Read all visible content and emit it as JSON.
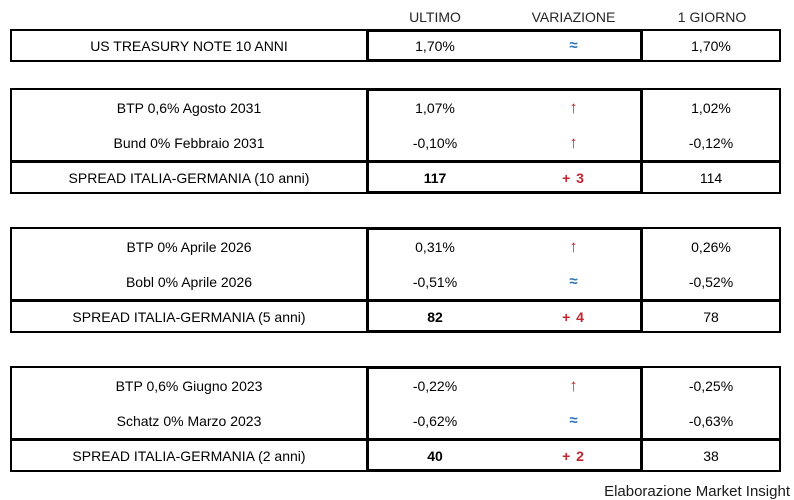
{
  "chart_data": {
    "type": "table",
    "columns": [
      "ULTIMO",
      "VARIAZIONE",
      "1 GIORNO"
    ],
    "symbols": {
      "up": "↑",
      "steady": "≈"
    },
    "colors": {
      "up_red": "#c2262e",
      "steady_blue": "#2e74b5",
      "border": "#000000",
      "background": "#ffffff",
      "text": "#000000"
    },
    "groups": [
      {
        "rows": [
          {
            "name": "US TREASURY NOTE 10 ANNI",
            "ultimo": "1,70%",
            "change": "≈",
            "direction": "steady",
            "giorno": "1,70%"
          }
        ]
      },
      {
        "rows": [
          {
            "name": "BTP 0,6% Agosto 2031",
            "ultimo": "1,07%",
            "change": "↑",
            "direction": "up",
            "giorno": "1,02%"
          },
          {
            "name": "Bund 0% Febbraio 2031",
            "ultimo": "-0,10%",
            "change": "↑",
            "direction": "up",
            "giorno": "-0,12%"
          }
        ],
        "spread": {
          "name": "SPREAD ITALIA-GERMANIA (10 anni)",
          "ultimo": "117",
          "change": "+ 3",
          "direction": "up",
          "giorno": "114"
        }
      },
      {
        "rows": [
          {
            "name": "BTP 0% Aprile 2026",
            "ultimo": "0,31%",
            "change": "↑",
            "direction": "up",
            "giorno": "0,26%"
          },
          {
            "name": "Bobl 0% Aprile 2026",
            "ultimo": "-0,51%",
            "change": "≈",
            "direction": "steady",
            "giorno": "-0,52%"
          }
        ],
        "spread": {
          "name": "SPREAD ITALIA-GERMANIA (5 anni)",
          "ultimo": "82",
          "change": "+ 4",
          "direction": "up",
          "giorno": "78"
        }
      },
      {
        "rows": [
          {
            "name": "BTP 0,6% Giugno 2023",
            "ultimo": "-0,22%",
            "change": "↑",
            "direction": "up",
            "giorno": "-0,25%"
          },
          {
            "name": "Schatz 0% Marzo 2023",
            "ultimo": "-0,62%",
            "change": "≈",
            "direction": "steady",
            "giorno": "-0,63%"
          }
        ],
        "spread": {
          "name": "SPREAD ITALIA-GERMANIA (2 anni)",
          "ultimo": "40",
          "change": "+ 2",
          "direction": "up",
          "giorno": "38"
        }
      }
    ],
    "footer": "Elaborazione Market Insight"
  }
}
